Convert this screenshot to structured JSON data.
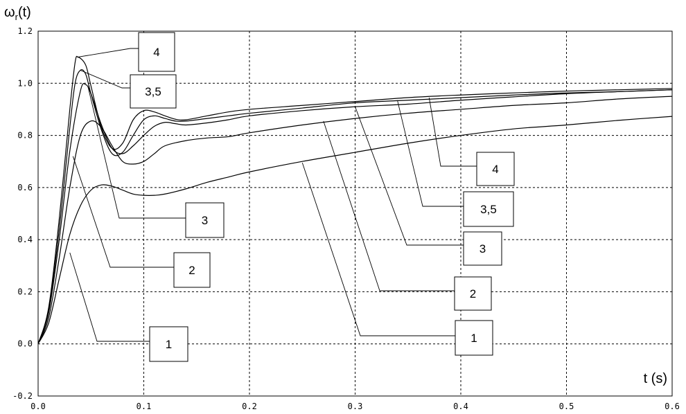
{
  "chart_data": {
    "type": "line",
    "title": "",
    "xlabel": "t (s)",
    "ylabel_main": "ω",
    "ylabel_sub": "r",
    "ylabel_tail": "(t)",
    "xlim": [
      0,
      0.6
    ],
    "ylim": [
      -0.2,
      1.2
    ],
    "grid": true,
    "x_ticks": [
      "0.0",
      "0.1",
      "0.2",
      "0.3",
      "0.4",
      "0.5",
      "0.6"
    ],
    "y_ticks": [
      "-0.2",
      "0.0",
      "0.2",
      "0.4",
      "0.6",
      "0.8",
      "1.0",
      "1.2"
    ],
    "series": [
      {
        "name": "1",
        "points": [
          [
            0,
            0
          ],
          [
            0.01,
            0.08
          ],
          [
            0.02,
            0.25
          ],
          [
            0.03,
            0.42
          ],
          [
            0.04,
            0.53
          ],
          [
            0.05,
            0.59
          ],
          [
            0.06,
            0.61
          ],
          [
            0.07,
            0.605
          ],
          [
            0.08,
            0.59
          ],
          [
            0.09,
            0.575
          ],
          [
            0.1,
            0.57
          ],
          [
            0.11,
            0.57
          ],
          [
            0.12,
            0.575
          ],
          [
            0.14,
            0.595
          ],
          [
            0.16,
            0.62
          ],
          [
            0.18,
            0.64
          ],
          [
            0.2,
            0.66
          ],
          [
            0.25,
            0.7
          ],
          [
            0.3,
            0.735
          ],
          [
            0.35,
            0.77
          ],
          [
            0.4,
            0.8
          ],
          [
            0.45,
            0.825
          ],
          [
            0.5,
            0.84
          ],
          [
            0.55,
            0.858
          ],
          [
            0.6,
            0.873
          ]
        ]
      },
      {
        "name": "2",
        "points": [
          [
            0,
            0
          ],
          [
            0.01,
            0.1
          ],
          [
            0.02,
            0.33
          ],
          [
            0.03,
            0.6
          ],
          [
            0.04,
            0.8
          ],
          [
            0.05,
            0.855
          ],
          [
            0.06,
            0.83
          ],
          [
            0.07,
            0.76
          ],
          [
            0.08,
            0.7
          ],
          [
            0.09,
            0.69
          ],
          [
            0.1,
            0.7
          ],
          [
            0.11,
            0.73
          ],
          [
            0.12,
            0.76
          ],
          [
            0.14,
            0.78
          ],
          [
            0.16,
            0.79
          ],
          [
            0.18,
            0.795
          ],
          [
            0.2,
            0.81
          ],
          [
            0.25,
            0.84
          ],
          [
            0.3,
            0.865
          ],
          [
            0.35,
            0.885
          ],
          [
            0.4,
            0.9
          ],
          [
            0.45,
            0.915
          ],
          [
            0.5,
            0.925
          ],
          [
            0.55,
            0.94
          ],
          [
            0.6,
            0.95
          ]
        ]
      },
      {
        "name": "3",
        "points": [
          [
            0,
            0
          ],
          [
            0.01,
            0.12
          ],
          [
            0.02,
            0.4
          ],
          [
            0.03,
            0.74
          ],
          [
            0.04,
            0.97
          ],
          [
            0.045,
            0.995
          ],
          [
            0.05,
            0.96
          ],
          [
            0.06,
            0.84
          ],
          [
            0.07,
            0.75
          ],
          [
            0.08,
            0.73
          ],
          [
            0.09,
            0.76
          ],
          [
            0.1,
            0.8
          ],
          [
            0.11,
            0.835
          ],
          [
            0.12,
            0.85
          ],
          [
            0.13,
            0.845
          ],
          [
            0.14,
            0.84
          ],
          [
            0.16,
            0.848
          ],
          [
            0.18,
            0.86
          ],
          [
            0.2,
            0.875
          ],
          [
            0.25,
            0.895
          ],
          [
            0.3,
            0.91
          ],
          [
            0.35,
            0.92
          ],
          [
            0.4,
            0.935
          ],
          [
            0.45,
            0.948
          ],
          [
            0.5,
            0.96
          ],
          [
            0.55,
            0.968
          ],
          [
            0.6,
            0.975
          ]
        ]
      },
      {
        "name": "3,5",
        "points": [
          [
            0,
            0
          ],
          [
            0.01,
            0.13
          ],
          [
            0.02,
            0.44
          ],
          [
            0.03,
            0.83
          ],
          [
            0.035,
            1.0
          ],
          [
            0.04,
            1.05
          ],
          [
            0.045,
            1.035
          ],
          [
            0.05,
            0.96
          ],
          [
            0.06,
            0.82
          ],
          [
            0.07,
            0.73
          ],
          [
            0.08,
            0.735
          ],
          [
            0.09,
            0.8
          ],
          [
            0.1,
            0.86
          ],
          [
            0.11,
            0.875
          ],
          [
            0.12,
            0.865
          ],
          [
            0.13,
            0.855
          ],
          [
            0.14,
            0.855
          ],
          [
            0.16,
            0.865
          ],
          [
            0.18,
            0.875
          ],
          [
            0.2,
            0.885
          ],
          [
            0.25,
            0.905
          ],
          [
            0.3,
            0.925
          ],
          [
            0.35,
            0.935
          ],
          [
            0.4,
            0.945
          ],
          [
            0.45,
            0.955
          ],
          [
            0.5,
            0.963
          ],
          [
            0.55,
            0.968
          ],
          [
            0.6,
            0.975
          ]
        ]
      },
      {
        "name": "4",
        "points": [
          [
            0,
            0
          ],
          [
            0.01,
            0.14
          ],
          [
            0.02,
            0.48
          ],
          [
            0.03,
            0.9
          ],
          [
            0.035,
            1.08
          ],
          [
            0.038,
            1.1
          ],
          [
            0.045,
            1.07
          ],
          [
            0.05,
            0.99
          ],
          [
            0.06,
            0.83
          ],
          [
            0.07,
            0.75
          ],
          [
            0.08,
            0.77
          ],
          [
            0.09,
            0.86
          ],
          [
            0.1,
            0.895
          ],
          [
            0.11,
            0.89
          ],
          [
            0.12,
            0.875
          ],
          [
            0.13,
            0.862
          ],
          [
            0.14,
            0.86
          ],
          [
            0.16,
            0.875
          ],
          [
            0.18,
            0.89
          ],
          [
            0.2,
            0.9
          ],
          [
            0.25,
            0.915
          ],
          [
            0.3,
            0.93
          ],
          [
            0.35,
            0.945
          ],
          [
            0.4,
            0.955
          ],
          [
            0.45,
            0.963
          ],
          [
            0.5,
            0.97
          ],
          [
            0.55,
            0.975
          ],
          [
            0.6,
            0.98
          ]
        ]
      }
    ],
    "annotations": [
      {
        "text": "4",
        "target": [
          0.037,
          1.1
        ]
      },
      {
        "text": "3,5",
        "target": [
          0.04,
          1.05
        ]
      },
      {
        "text": "3",
        "target": [
          0.047,
          0.99
        ]
      },
      {
        "text": "2",
        "target": [
          0.033,
          0.72
        ]
      },
      {
        "text": "1",
        "target": [
          0.03,
          0.35
        ]
      },
      {
        "text": "4",
        "target": [
          0.37,
          0.945
        ]
      },
      {
        "text": "3,5",
        "target": [
          0.34,
          0.935
        ]
      },
      {
        "text": "3",
        "target": [
          0.3,
          0.91
        ]
      },
      {
        "text": "2",
        "target": [
          0.27,
          0.855
        ]
      },
      {
        "text": "1",
        "target": [
          0.25,
          0.695
        ]
      }
    ]
  }
}
